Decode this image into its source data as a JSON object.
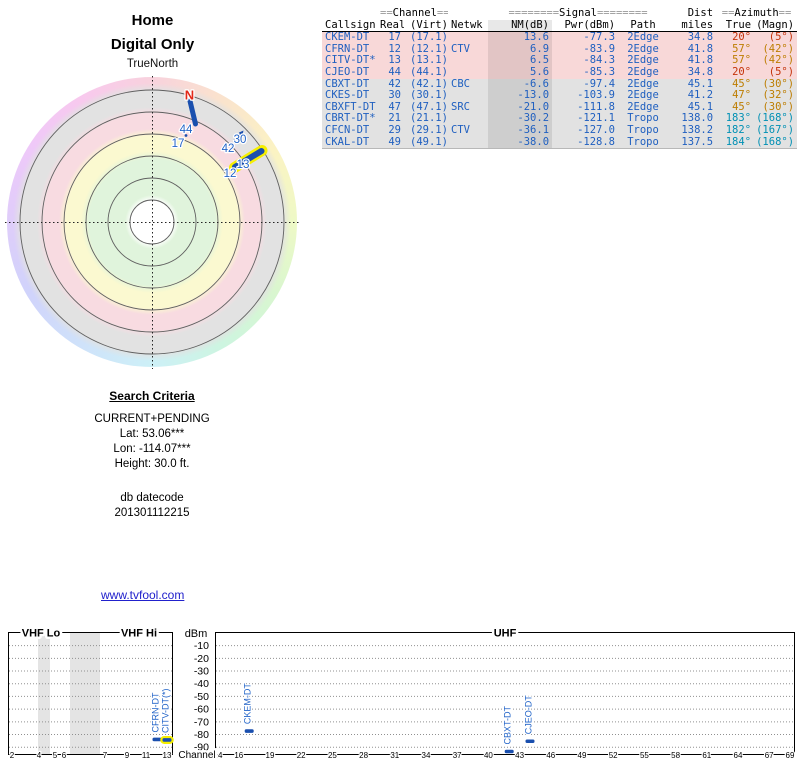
{
  "radar": {
    "title": "Home",
    "subtitle": "Digital Only",
    "orientation_label": "TrueNorth",
    "magnetic_north": "N",
    "marker_labels": {
      "ch44": "44",
      "ch17": "17",
      "ch30": "30",
      "ch42": "42",
      "ch13": "13",
      "ch12": "12"
    }
  },
  "table": {
    "group_headers": [
      {
        "span": 1,
        "pre": "",
        "label": "",
        "post": "",
        "align": "a-left"
      },
      {
        "span": 2,
        "pre": "==",
        "label": "Channel",
        "post": "==",
        "align": "a-center"
      },
      {
        "span": 1,
        "pre": "",
        "label": "",
        "post": "",
        "align": "a-left"
      },
      {
        "span": 3,
        "pre": "========",
        "label": "Signal",
        "post": "========",
        "align": "a-center"
      },
      {
        "span": 1,
        "pre": "",
        "label": "Dist",
        "post": "",
        "align": "a-right"
      },
      {
        "span": 2,
        "pre": "==",
        "label": "Azimuth",
        "post": "==",
        "align": "a-center"
      }
    ],
    "columns": [
      {
        "key": "callsign",
        "label": "Callsign",
        "align": "a-left"
      },
      {
        "key": "real",
        "label": "Real",
        "align": "a-right"
      },
      {
        "key": "virt",
        "label": "(Virt)",
        "align": "a-leftpad"
      },
      {
        "key": "netwk",
        "label": "Netwk",
        "align": "a-left"
      },
      {
        "key": "nm",
        "label": "NM(dB)",
        "align": "a-right",
        "shaded": true
      },
      {
        "key": "pwr",
        "label": "Pwr(dBm)",
        "align": "a-right"
      },
      {
        "key": "path",
        "label": "Path",
        "align": "a-center"
      },
      {
        "key": "miles",
        "label": "miles",
        "align": "a-right"
      },
      {
        "key": "true",
        "label": "True",
        "align": "a-right"
      },
      {
        "key": "magn",
        "label": "(Magn)",
        "align": "a-right"
      }
    ],
    "rows": [
      {
        "callsign": "CKEM-DT",
        "real": "17",
        "virt": "(17.1)",
        "netwk": "",
        "nm": "13.6",
        "pwr": "-77.3",
        "path": "2Edge",
        "miles": "34.8",
        "true": "20°",
        "magn": "(5°)",
        "tier": "strong",
        "az_color": "#c5330a"
      },
      {
        "callsign": "CFRN-DT",
        "real": "12",
        "virt": "(12.1)",
        "netwk": "CTV",
        "nm": "6.9",
        "pwr": "-83.9",
        "path": "2Edge",
        "miles": "41.8",
        "true": "57°",
        "magn": "(42°)",
        "tier": "strong",
        "az_color": "#bd7d00"
      },
      {
        "callsign": "CITV-DT*",
        "real": "13",
        "virt": "(13.1)",
        "netwk": "",
        "nm": "6.5",
        "pwr": "-84.3",
        "path": "2Edge",
        "miles": "41.8",
        "true": "57°",
        "magn": "(42°)",
        "tier": "strong",
        "az_color": "#bd7d00"
      },
      {
        "callsign": "CJEO-DT",
        "real": "44",
        "virt": "(44.1)",
        "netwk": "",
        "nm": "5.6",
        "pwr": "-85.3",
        "path": "2Edge",
        "miles": "34.8",
        "true": "20°",
        "magn": "(5°)",
        "tier": "strong",
        "az_color": "#c5330a"
      },
      {
        "callsign": "CBXT-DT",
        "real": "42",
        "virt": "(42.1)",
        "netwk": "CBC",
        "nm": "-6.6",
        "pwr": "-97.4",
        "path": "2Edge",
        "miles": "45.1",
        "true": "45°",
        "magn": "(30°)",
        "tier": "weak",
        "az_color": "#bd7d00"
      },
      {
        "callsign": "CKES-DT",
        "real": "30",
        "virt": "(30.1)",
        "netwk": "",
        "nm": "-13.0",
        "pwr": "-103.9",
        "path": "2Edge",
        "miles": "41.2",
        "true": "47°",
        "magn": "(32°)",
        "tier": "weak",
        "az_color": "#bd7d00"
      },
      {
        "callsign": "CBXFT-DT",
        "real": "47",
        "virt": "(47.1)",
        "netwk": "SRC",
        "nm": "-21.0",
        "pwr": "-111.8",
        "path": "2Edge",
        "miles": "45.1",
        "true": "45°",
        "magn": "(30°)",
        "tier": "weak",
        "az_color": "#bd7d00"
      },
      {
        "callsign": "CBRT-DT*",
        "real": "21",
        "virt": "(21.1)",
        "netwk": "",
        "nm": "-30.2",
        "pwr": "-121.1",
        "path": "Tropo",
        "miles": "138.0",
        "true": "183°",
        "magn": "(168°)",
        "tier": "weak",
        "az_color": "#0090b4"
      },
      {
        "callsign": "CFCN-DT",
        "real": "29",
        "virt": "(29.1)",
        "netwk": "CTV",
        "nm": "-36.1",
        "pwr": "-127.0",
        "path": "Tropo",
        "miles": "138.2",
        "true": "182°",
        "magn": "(167°)",
        "tier": "weak",
        "az_color": "#0090b4"
      },
      {
        "callsign": "CKAL-DT",
        "real": "49",
        "virt": "(49.1)",
        "netwk": "",
        "nm": "-38.0",
        "pwr": "-128.8",
        "path": "Tropo",
        "miles": "137.5",
        "true": "184°",
        "magn": "(168°)",
        "tier": "weak",
        "az_color": "#0090b4"
      }
    ]
  },
  "criteria": {
    "title": "Search Criteria",
    "mode": "CURRENT+PENDING",
    "lat": "Lat: 53.06***",
    "lon": "Lon: -114.07***",
    "height": "Height: 30.0 ft.",
    "db_label": "db datecode",
    "db_value": "201301112215"
  },
  "link": {
    "text": "www.tvfool.com"
  },
  "chart_data": {
    "type": "scatter",
    "title": "",
    "xlabel": "Channel",
    "ylabel": "dBm",
    "ylim": [
      -96,
      -4
    ],
    "yticks": [
      -10,
      -20,
      -30,
      -40,
      -50,
      -60,
      -70,
      -80,
      -90
    ],
    "bands": [
      {
        "label": "VHF Lo"
      },
      {
        "label": "VHF Hi"
      },
      {
        "label": "UHF"
      }
    ],
    "vhf_ticks": [
      2,
      4,
      5,
      6,
      7,
      9,
      11,
      13
    ],
    "uhf_ticks": [
      14,
      16,
      19,
      22,
      25,
      28,
      31,
      34,
      37,
      40,
      43,
      46,
      49,
      52,
      55,
      58,
      61,
      64,
      67,
      69
    ],
    "stations": [
      {
        "callsign": "CKEM-DT",
        "channel": 17,
        "dbm": -77.3,
        "highlighted": false
      },
      {
        "callsign": "CFRN-DT",
        "channel": 12,
        "dbm": -83.9,
        "highlighted": false
      },
      {
        "callsign": "CITV-DT(*)",
        "channel": 13,
        "dbm": -84.3,
        "highlighted": true
      },
      {
        "callsign": "CJEO-DT",
        "channel": 44,
        "dbm": -85.3,
        "highlighted": false
      },
      {
        "callsign": "CBXT-DT",
        "channel": 42,
        "dbm": -97.4,
        "highlighted": false
      }
    ],
    "colors": {
      "marker": "#1a4fae",
      "highlight": "#f6ef00",
      "label": "#2264c8",
      "grid": "#909090"
    }
  }
}
